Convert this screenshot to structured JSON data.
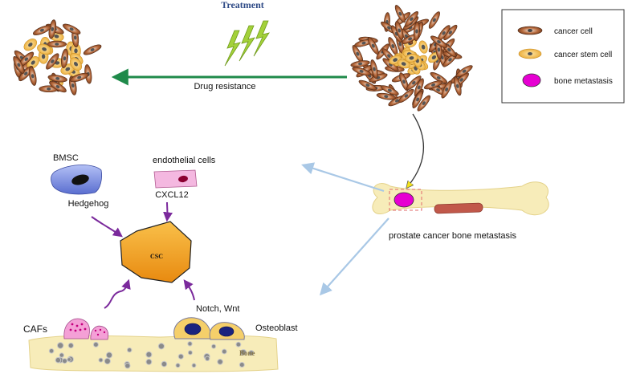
{
  "labels": {
    "treatment": "Treatment",
    "drug_resistance": "Drug resistance",
    "bmsc": "BMSC",
    "hedgehog": "Hedgehog",
    "endothelial_cells": "endothelial cells",
    "cxcl12": "CXCL12",
    "csc": "CSC",
    "cafs": "CAFs",
    "notch_wnt": "Notch, Wnt",
    "osteoblast": "Osteoblast",
    "bone": "Bone",
    "prostate_bone_metastasis": "prostate cancer bone metastasis"
  },
  "legend": {
    "items": [
      {
        "label": "cancer cell",
        "icon": "cancer-cell-icon"
      },
      {
        "label": "cancer stem cell",
        "icon": "cancer-stem-cell-icon"
      },
      {
        "label": "bone metastasis",
        "icon": "bone-metastasis-icon"
      }
    ]
  },
  "colors": {
    "cancer_cell": "#a0522d",
    "cancer_stem_cell": "#f2b63c",
    "csc_fill": "#f5a21e",
    "bone": "#f7ecb9",
    "metastasis": "#e600d2",
    "arrow_green": "#1f8a4a",
    "arrow_purple": "#7b2a9c",
    "arrow_blue": "#a9c8e6",
    "lightning": "#9acd32",
    "bmsc": "#7b8ee0",
    "endothelial": "#f4b8e0",
    "caf": "#f4a0d6",
    "osteoblast": "#f5cf6a",
    "osteoblast_nucleus": "#1a237e",
    "treatment_text": "#2e4a86"
  }
}
